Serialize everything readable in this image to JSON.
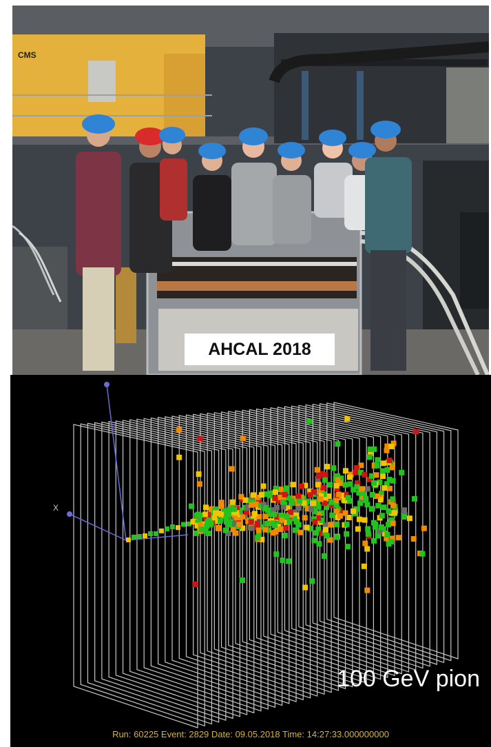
{
  "photo": {
    "wall_text": "CMS",
    "caption": "AHCAL 2018"
  },
  "event_display": {
    "axis_label": "X",
    "energy_label": "100 GeV pion",
    "run_info": "Run: 60225 Event: 2829 Date: 09.05.2018 Time: 14:27:33.000000000",
    "hit_colors": [
      "#22c21f",
      "#f0c400",
      "#f08a00",
      "#d21414",
      "#6a6a6a"
    ],
    "frame_color": "#c8c8c8",
    "axis_color": "#6a6ad8"
  }
}
